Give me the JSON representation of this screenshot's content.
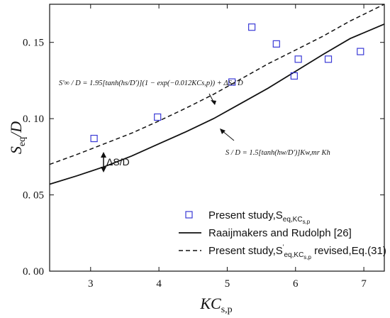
{
  "chart_data": {
    "type": "scatter",
    "x_axis_label": "KC",
    "x_axis_label_sub": "s,p",
    "y_axis_label": "S",
    "y_axis_label_sub": "eq",
    "y_axis_label_suffix": "/D",
    "xlim": [
      2.4,
      7.3
    ],
    "ylim": [
      0.0,
      0.175
    ],
    "x_ticks": [
      3,
      4,
      5,
      6,
      7
    ],
    "x_tick_labels": [
      "3",
      "4",
      "5",
      "6",
      "7"
    ],
    "y_ticks": [
      0.0,
      0.05,
      0.1,
      0.15
    ],
    "y_tick_labels": [
      "0. 00",
      "0. 05",
      "0. 10",
      "0. 15"
    ],
    "series": [
      {
        "name": "Present study,S",
        "name_sub": "eq,KC",
        "name_subsub": "s,p",
        "style": "square-marker",
        "color": "#3a3ad6",
        "x": [
          3.05,
          3.98,
          5.07,
          5.36,
          5.72,
          5.98,
          6.04,
          6.48,
          6.95
        ],
        "y": [
          0.087,
          0.101,
          0.124,
          0.16,
          0.149,
          0.128,
          0.139,
          0.139,
          0.144
        ]
      },
      {
        "name": "Raaijmakers and Rudolph [26]",
        "style": "solid-line",
        "color": "#111111",
        "x": [
          2.4,
          2.8,
          3.2,
          3.6,
          4.0,
          4.4,
          4.8,
          5.2,
          5.6,
          6.0,
          6.4,
          6.8,
          7.3
        ],
        "y": [
          0.057,
          0.0625,
          0.0685,
          0.0755,
          0.0835,
          0.0915,
          0.1,
          0.11,
          0.12,
          0.131,
          0.142,
          0.1525,
          0.162
        ]
      },
      {
        "name": "Present study,S",
        "name_sup": "'",
        "name_sub": "eq,KC",
        "name_subsub": "s,p",
        "name_suffix": " revised,Eq.(31)",
        "style": "dashed-line",
        "color": "#111111",
        "x": [
          2.4,
          2.8,
          3.2,
          3.6,
          4.0,
          4.4,
          4.8,
          5.2,
          5.6,
          6.0,
          6.4,
          6.8,
          7.3
        ],
        "y": [
          0.07,
          0.0765,
          0.0835,
          0.0905,
          0.0985,
          0.107,
          0.116,
          0.126,
          0.136,
          0.145,
          0.154,
          0.164,
          0.175
        ]
      }
    ],
    "annotations": {
      "delta_label": "ΔS/D",
      "equation_upper": "S'∞ / D = 1.95[tanh(hs/D')](1 − exp(−0.012KCs,p)) + ΔS / D",
      "equation_lower": "S / D = 1.5[tanh(hw/D')]Kw,mr Kh"
    },
    "legend_position": "bottom-right",
    "grid": false
  }
}
